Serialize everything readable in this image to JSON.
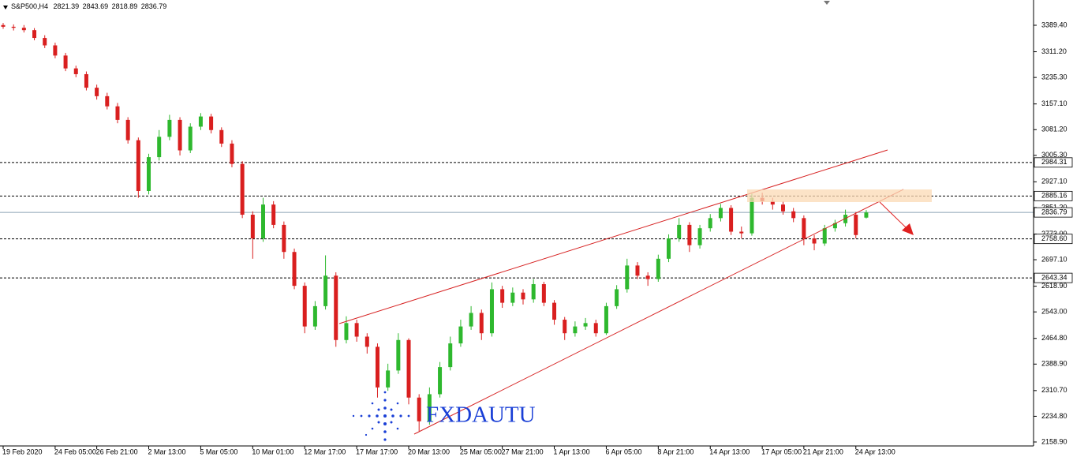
{
  "chart_data": {
    "type": "candlestick",
    "symbol": "S&P500,H4",
    "watermark": "FXDAUTU",
    "up_color": "#2eb82e",
    "down_color": "#d91f1f",
    "categories": [
      "19 Feb 2020",
      null,
      null,
      null,
      null,
      "24 Feb 05:00",
      null,
      null,
      null,
      "26 Feb 21:00",
      null,
      null,
      null,
      null,
      "2 Mar 13:00",
      null,
      null,
      null,
      null,
      "5 Mar 05:00",
      null,
      null,
      null,
      null,
      "10 Mar 01:00",
      null,
      null,
      null,
      null,
      "12 Mar 17:00",
      null,
      null,
      null,
      null,
      "17 Mar 17:00",
      null,
      null,
      null,
      null,
      "20 Mar 13:00",
      null,
      null,
      null,
      null,
      "25 Mar 05:00",
      null,
      null,
      null,
      "27 Mar 21:00",
      null,
      null,
      null,
      null,
      "1 Apr 13:00",
      null,
      null,
      null,
      null,
      "6 Apr 05:00",
      null,
      null,
      null,
      null,
      "8 Apr 21:00",
      null,
      null,
      null,
      null,
      "14 Apr 13:00",
      null,
      null,
      null,
      null,
      "17 Apr 05:00",
      null,
      null,
      null,
      "21 Apr 21:00",
      null,
      null,
      null,
      null,
      "24 Apr 13:00",
      null
    ],
    "open": [
      3390,
      3385,
      3382,
      3375,
      3352,
      3330,
      3300,
      3262,
      3245,
      3205,
      3180,
      3150,
      3110,
      3050,
      2900,
      3000,
      3060,
      3110,
      3020,
      3090,
      3120,
      3080,
      3040,
      2980,
      2830,
      2760,
      2860,
      2800,
      2720,
      2620,
      2500,
      2560,
      2650,
      2460,
      2510,
      2470,
      2440,
      2320,
      2370,
      2460,
      2290,
      2220,
      2300,
      2380,
      2450,
      2500,
      2540,
      2480,
      2610,
      2570,
      2600,
      2580,
      2625,
      2570,
      2520,
      2480,
      2500,
      2510,
      2480,
      2560,
      2610,
      2680,
      2650,
      2640,
      2700,
      2760,
      2800,
      2740,
      2790,
      2820,
      2850,
      2780,
      2775,
      2880,
      2870,
      2860,
      2840,
      2820,
      2760,
      2745,
      2790,
      2805,
      2830,
      2821.39
    ],
    "high": [
      3396,
      3392,
      3390,
      3381,
      3360,
      3338,
      3308,
      3270,
      3253,
      3214,
      3190,
      3160,
      3118,
      3058,
      3010,
      3080,
      3125,
      3118,
      3100,
      3130,
      3128,
      3088,
      3050,
      2988,
      2840,
      2880,
      2870,
      2810,
      2730,
      2630,
      2575,
      2710,
      2660,
      2530,
      2520,
      2480,
      2450,
      2390,
      2480,
      2465,
      2300,
      2320,
      2395,
      2470,
      2520,
      2560,
      2550,
      2630,
      2620,
      2615,
      2610,
      2640,
      2632,
      2578,
      2528,
      2515,
      2525,
      2520,
      2570,
      2622,
      2700,
      2690,
      2660,
      2712,
      2772,
      2820,
      2808,
      2800,
      2832,
      2862,
      2858,
      2795,
      2892,
      2895,
      2880,
      2870,
      2850,
      2828,
      2770,
      2800,
      2815,
      2845,
      2838,
      2843.69
    ],
    "low": [
      3379,
      3374,
      3368,
      3345,
      3322,
      3292,
      3254,
      3236,
      3197,
      3170,
      3141,
      3100,
      3040,
      2880,
      2890,
      2990,
      3050,
      3005,
      3012,
      3080,
      3070,
      3030,
      2970,
      2820,
      2700,
      2750,
      2790,
      2700,
      2610,
      2480,
      2490,
      2550,
      2440,
      2450,
      2455,
      2420,
      2290,
      2310,
      2360,
      2270,
      2191,
      2210,
      2290,
      2370,
      2440,
      2490,
      2460,
      2470,
      2555,
      2560,
      2565,
      2570,
      2560,
      2505,
      2460,
      2470,
      2490,
      2470,
      2475,
      2552,
      2600,
      2640,
      2620,
      2632,
      2690,
      2750,
      2720,
      2730,
      2780,
      2810,
      2770,
      2760,
      2768,
      2860,
      2845,
      2830,
      2808,
      2740,
      2725,
      2738,
      2780,
      2795,
      2760,
      2818.89
    ],
    "close": [
      3385,
      3382,
      3375,
      3352,
      3330,
      3300,
      3262,
      3245,
      3205,
      3180,
      3150,
      3110,
      3050,
      2900,
      3000,
      3060,
      3110,
      3020,
      3090,
      3120,
      3080,
      3040,
      2980,
      2830,
      2760,
      2860,
      2800,
      2720,
      2620,
      2500,
      2560,
      2650,
      2460,
      2510,
      2470,
      2440,
      2320,
      2370,
      2460,
      2290,
      2220,
      2300,
      2380,
      2450,
      2500,
      2540,
      2480,
      2610,
      2570,
      2600,
      2580,
      2625,
      2570,
      2520,
      2480,
      2500,
      2510,
      2480,
      2560,
      2610,
      2680,
      2650,
      2640,
      2700,
      2760,
      2800,
      2740,
      2790,
      2820,
      2850,
      2780,
      2775,
      2880,
      2870,
      2860,
      2840,
      2820,
      2760,
      2745,
      2790,
      2805,
      2830,
      2770,
      2836.79
    ],
    "ylim": [
      2147.2,
      3464.0
    ],
    "yticks": [
      {
        "value": 3389.4,
        "label": "3389.40"
      },
      {
        "value": 3311.2,
        "label": "3311.20"
      },
      {
        "value": 3235.3,
        "label": "3235.30"
      },
      {
        "value": 3157.1,
        "label": "3157.10"
      },
      {
        "value": 3081.2,
        "label": "3081.20"
      },
      {
        "value": 3005.3,
        "label": "3005.30"
      },
      {
        "value": 2927.1,
        "label": "2927.10"
      },
      {
        "value": 2851.2,
        "label": "2851.20"
      },
      {
        "value": 2773,
        "label": "2773.00"
      },
      {
        "value": 2697.1,
        "label": "2697.10"
      },
      {
        "value": 2618.9,
        "label": "2618.90"
      },
      {
        "value": 2543,
        "label": "2543.00"
      },
      {
        "value": 2464.8,
        "label": "2464.80"
      },
      {
        "value": 2388.9,
        "label": "2388.90"
      },
      {
        "value": 2310.7,
        "label": "2310.70"
      },
      {
        "value": 2234.8,
        "label": "2234.80"
      },
      {
        "value": 2158.9,
        "label": "2158.90"
      }
    ],
    "levels": [
      2984.31,
      2885.16,
      {
        "value": 2758.6,
        "label": "2758.60"
      },
      2643.34
    ],
    "last_price": 2836.79
  }
}
